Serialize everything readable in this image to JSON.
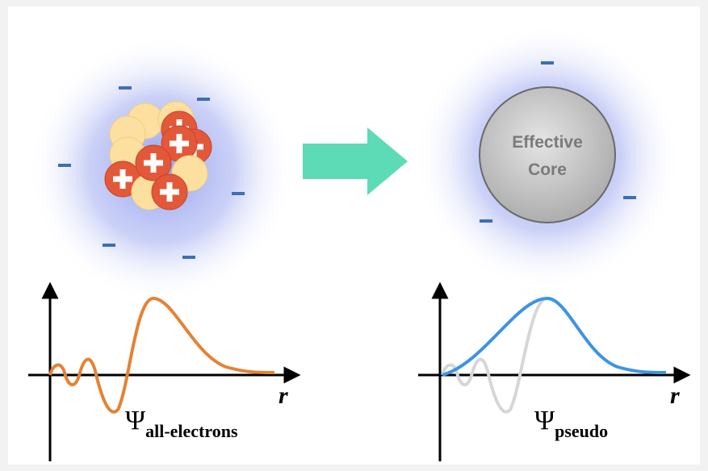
{
  "left": {
    "axis_label": "r",
    "symbol": "Ψ",
    "subscript": "all-electrons"
  },
  "right": {
    "core_label": [
      "Effective",
      "Core"
    ],
    "axis_label": "r",
    "symbol": "Ψ",
    "subscript": "pseudo"
  }
}
